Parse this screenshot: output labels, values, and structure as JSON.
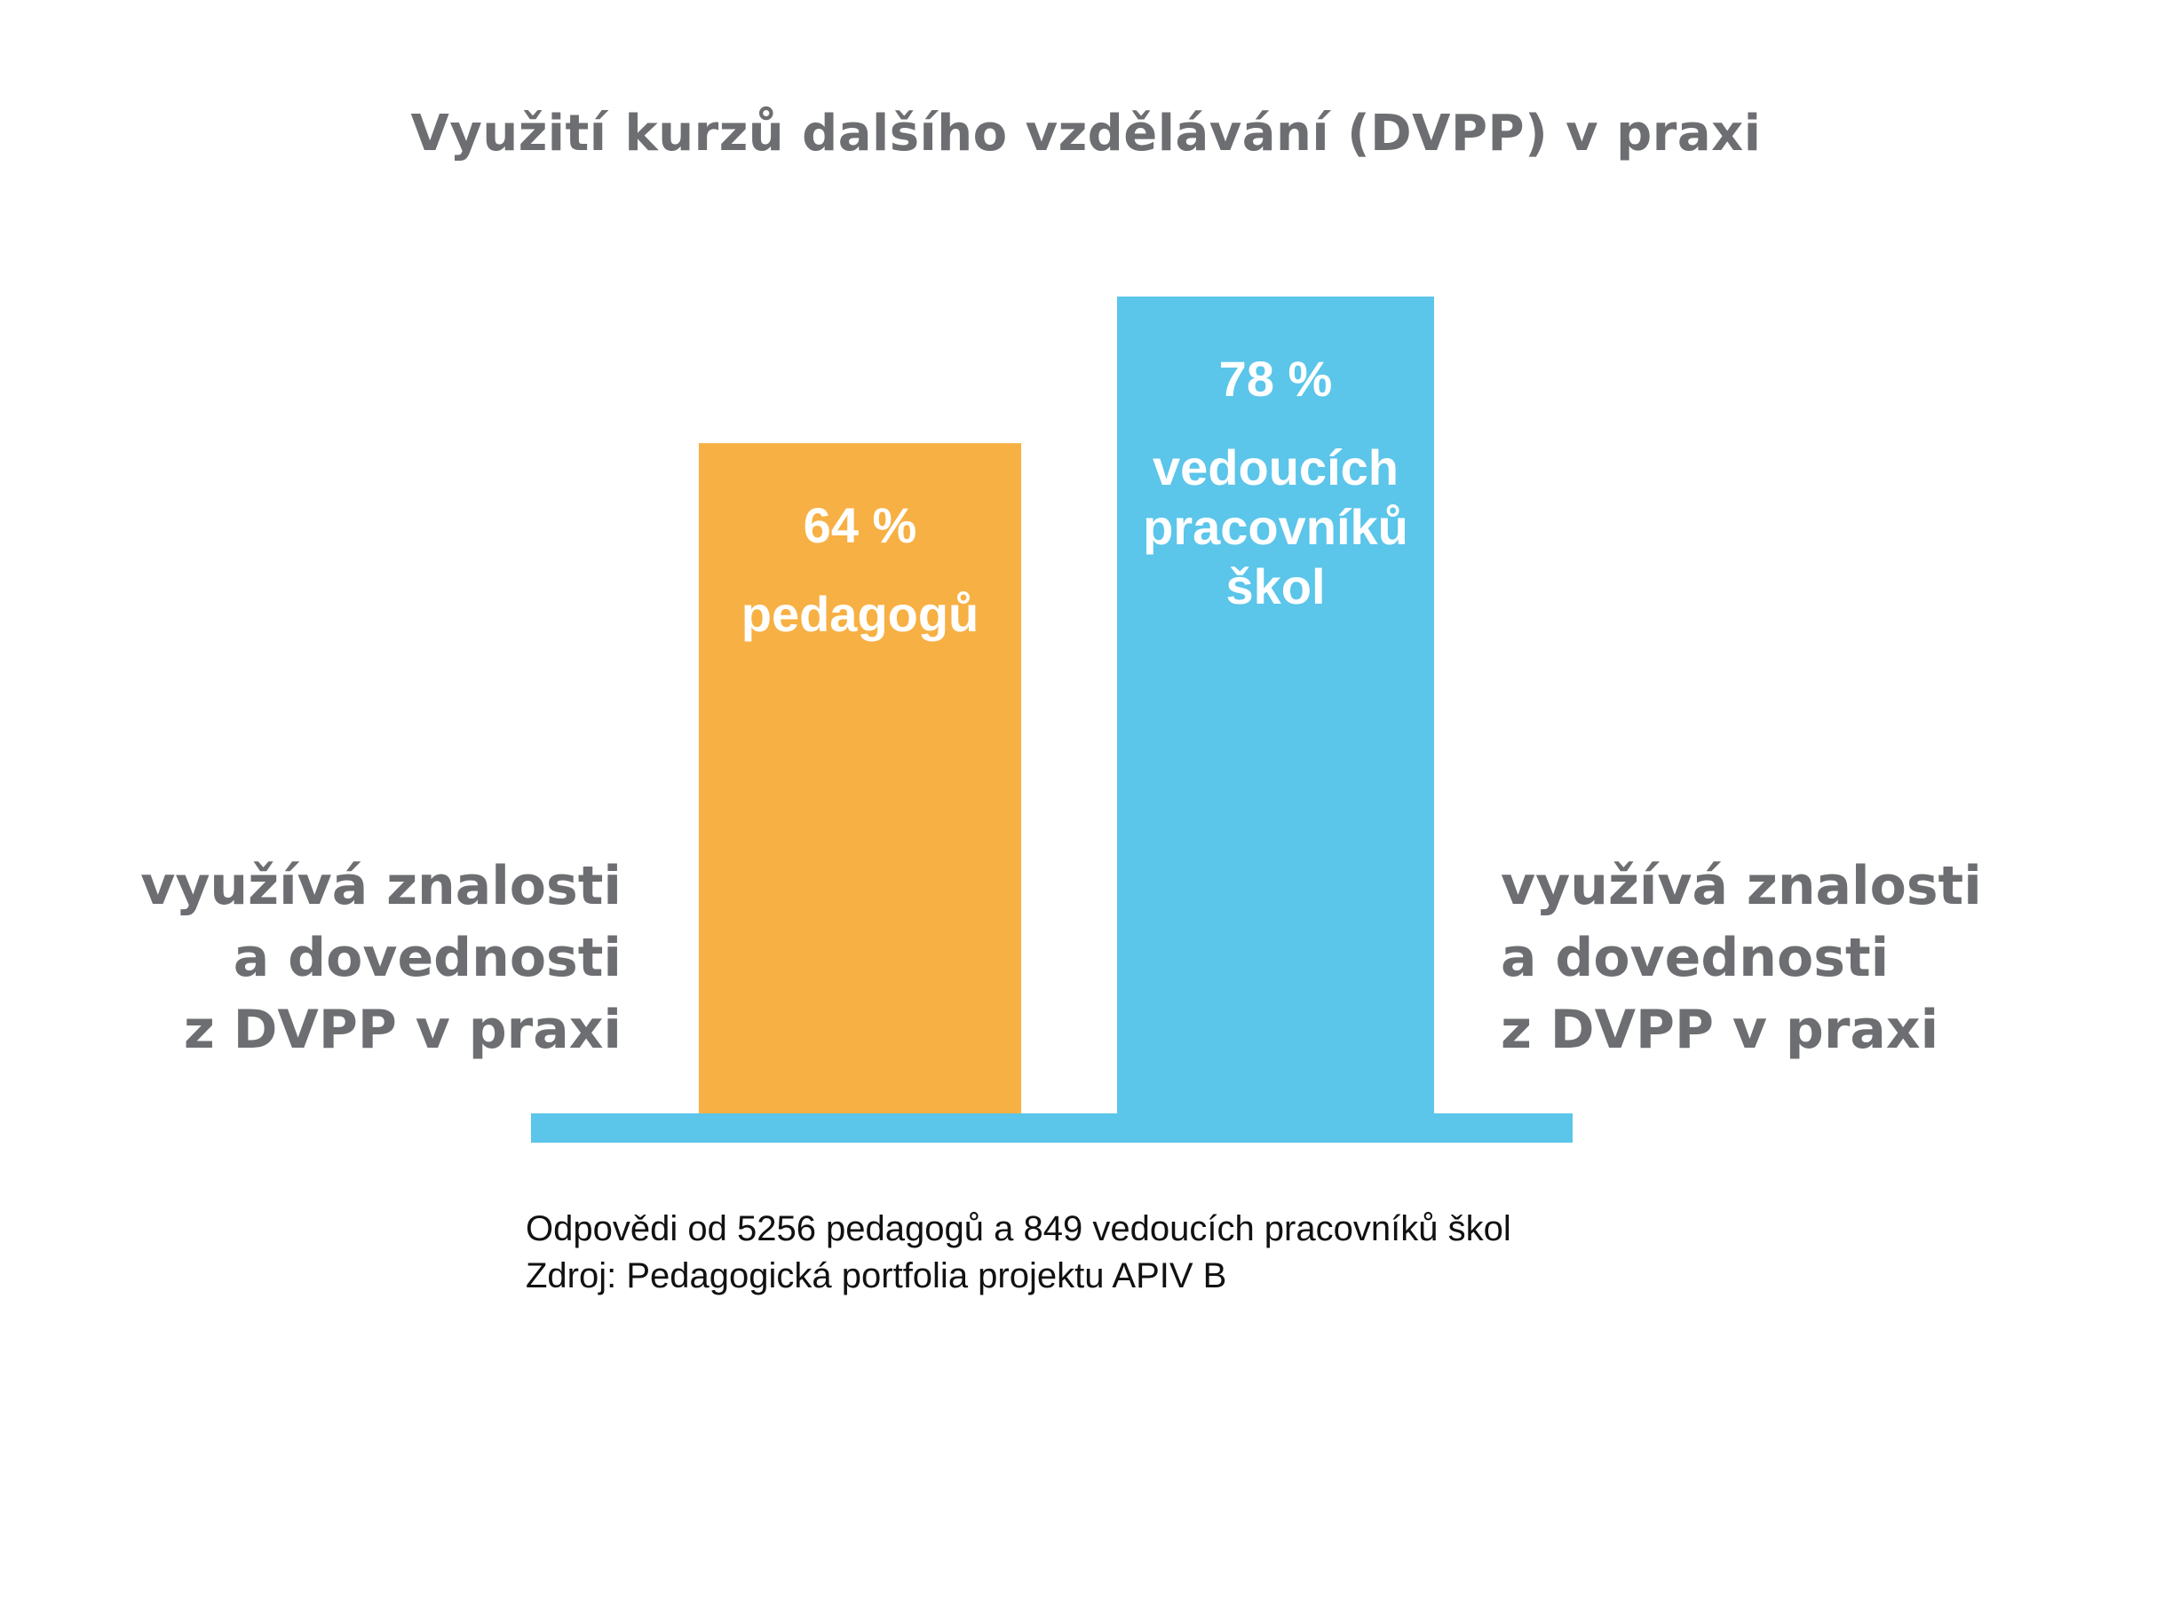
{
  "chart_data": {
    "type": "bar",
    "title": "Využití kurzů dalšího vzdělávání (DVPP) v praxi",
    "unit": "%",
    "categories": [
      "pedagogů",
      "vedoucích pracovníků škol"
    ],
    "values": [
      64,
      78
    ],
    "value_labels": [
      "64 %",
      "78 %"
    ],
    "category_labels": [
      [
        "pedagogů"
      ],
      [
        "vedoucích",
        "pracovníků",
        "škol"
      ]
    ],
    "colors": [
      "#f7b043",
      "#5bc5ea"
    ],
    "baseline_color": "#5bc5ea",
    "ylim": [
      0,
      100
    ],
    "grid": false,
    "legend": "none",
    "side_caption_left": [
      "využívá znalosti",
      "a dovednosti",
      "z DVPP v praxi"
    ],
    "side_caption_right": [
      "využívá znalosti",
      "a dovednosti",
      "z DVPP v praxi"
    ],
    "footnote": [
      "Odpovědi od 5256 pedagogů a 849 vedoucích pracovníků škol",
      "Zdroj: Pedagogická portfolia projektu APIV B"
    ]
  }
}
